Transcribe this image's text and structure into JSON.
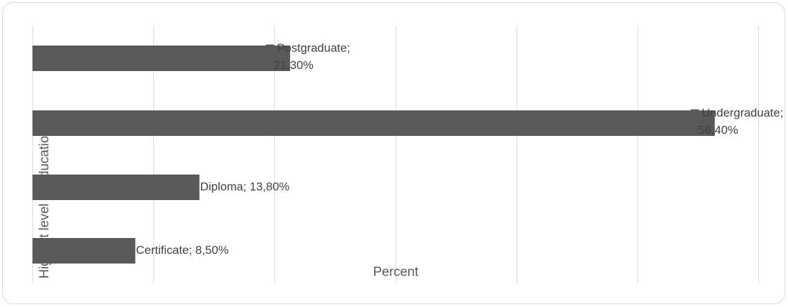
{
  "chart_data": {
    "type": "bar",
    "orientation": "horizontal",
    "categories": [
      "Postgraduate",
      "Undergraduate",
      "Diploma",
      "Certificate"
    ],
    "values": [
      21.3,
      56.4,
      13.8,
      8.5
    ],
    "data_labels": [
      [
        "Postgraduate;",
        "21,30%"
      ],
      [
        "Undergraduate;",
        "56,40%"
      ],
      [
        "Diploma; 13,80%"
      ],
      [
        "Certificate; 8,50%"
      ]
    ],
    "xlabel": "Percent",
    "ylabel": "Highest level of education",
    "xlim": [
      0,
      60
    ],
    "grid": true,
    "legend": "none",
    "bar_color": "#595959"
  }
}
